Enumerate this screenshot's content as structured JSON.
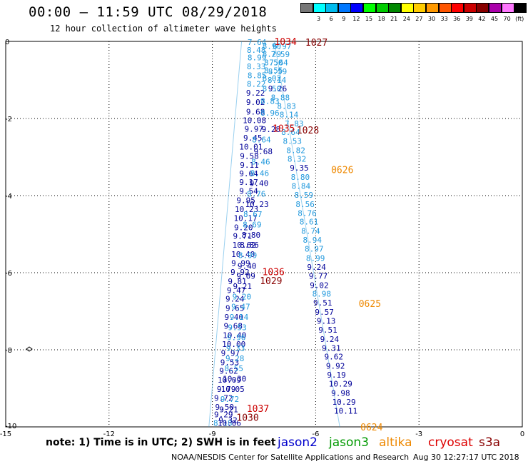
{
  "title": "00:00 – 11:59 UTC 08/29/2018",
  "subtitle": "12 hour collection of altimeter wave heights",
  "note": "note: 1) Time is in UTC; 2) SWH is in feet",
  "satellites": [
    {
      "name": "jason2",
      "color": "#0000cc"
    },
    {
      "name": "jason3",
      "color": "#009900"
    },
    {
      "name": "altika",
      "color": "#ee8800"
    },
    {
      "name": "cryosat",
      "color": "#dd0000"
    },
    {
      "name": "s3a",
      "color": "#880000"
    }
  ],
  "credit": "NOAA/NESDIS Center for Satellite Applications and Research",
  "timestamp": "Aug 30 12:27:17 UTC 2018",
  "color_scale": {
    "unit_label": "(ft)",
    "colors": [
      "#777777",
      "#00ffff",
      "#00bbee",
      "#0077ff",
      "#0000ff",
      "#00ff00",
      "#00cc00",
      "#008800",
      "#ffff00",
      "#ffcc00",
      "#ff9900",
      "#ff5500",
      "#ff0000",
      "#cc0000",
      "#880000",
      "#aa00aa",
      "#ff77ff",
      "#000000"
    ],
    "labels": [
      "3",
      "6",
      "9",
      "12",
      "15",
      "18",
      "21",
      "24",
      "27",
      "30",
      "33",
      "36",
      "39",
      "42",
      "45",
      "70"
    ]
  },
  "chart_data": {
    "type": "scatter",
    "xlim": [
      -15,
      0
    ],
    "ylim": [
      -10,
      0
    ],
    "x_ticks": [
      -15,
      -12,
      -9,
      -6,
      -3,
      0
    ],
    "y_ticks": [
      0,
      -2,
      -4,
      -6,
      -8,
      -10
    ],
    "grid": true,
    "track_mark_color": "#2299dd",
    "wave_heights_ft": [
      {
        "x": -7.98,
        "y": -0.02,
        "v": "7.64",
        "color": "#2299dd"
      },
      {
        "x": -8.0,
        "y": -0.22,
        "v": "8.48",
        "color": "#2299dd"
      },
      {
        "x": -7.98,
        "y": -0.42,
        "v": "8.99",
        "color": "#2299dd"
      },
      {
        "x": -8.0,
        "y": -0.65,
        "v": "8.33",
        "color": "#2299dd"
      },
      {
        "x": -7.98,
        "y": -0.88,
        "v": "8.85",
        "color": "#2299dd"
      },
      {
        "x": -8.0,
        "y": -1.1,
        "v": "8.22",
        "color": "#2299dd"
      },
      {
        "x": -8.02,
        "y": -1.33,
        "v": "9.22",
        "color": "#000099"
      },
      {
        "x": -8.02,
        "y": -1.57,
        "v": "9.02",
        "color": "#000099"
      },
      {
        "x": -8.02,
        "y": -1.82,
        "v": "9.68",
        "color": "#000099"
      },
      {
        "x": -8.12,
        "y": -2.05,
        "v": "10.08",
        "color": "#000099"
      },
      {
        "x": -8.07,
        "y": -2.27,
        "v": "9.97",
        "color": "#000099"
      },
      {
        "x": -8.1,
        "y": -2.5,
        "v": "9.45",
        "color": "#000099"
      },
      {
        "x": -8.22,
        "y": -2.73,
        "v": "10.01",
        "color": "#000099"
      },
      {
        "x": -8.2,
        "y": -2.97,
        "v": "9.58",
        "color": "#000099"
      },
      {
        "x": -8.2,
        "y": -3.2,
        "v": "9.11",
        "color": "#000099"
      },
      {
        "x": -8.22,
        "y": -3.43,
        "v": "9.64",
        "color": "#000099"
      },
      {
        "x": -8.22,
        "y": -3.65,
        "v": "9.17",
        "color": "#000099"
      },
      {
        "x": -8.22,
        "y": -3.88,
        "v": "9.54",
        "color": "#000099"
      },
      {
        "x": -8.3,
        "y": -4.12,
        "v": "9.95",
        "color": "#000099"
      },
      {
        "x": -8.35,
        "y": -4.35,
        "v": "10.23",
        "color": "#000099"
      },
      {
        "x": -8.38,
        "y": -4.58,
        "v": "10.17",
        "color": "#000099"
      },
      {
        "x": -8.37,
        "y": -4.82,
        "v": "9.20",
        "color": "#000099"
      },
      {
        "x": -8.4,
        "y": -5.05,
        "v": "9.71",
        "color": "#000099"
      },
      {
        "x": -8.42,
        "y": -5.28,
        "v": "10.62",
        "color": "#000099"
      },
      {
        "x": -8.45,
        "y": -5.52,
        "v": "10.40",
        "color": "#000099"
      },
      {
        "x": -8.45,
        "y": -5.75,
        "v": "9.99",
        "color": "#000099"
      },
      {
        "x": -8.47,
        "y": -5.98,
        "v": "9.92",
        "color": "#000099"
      },
      {
        "x": -8.55,
        "y": -6.22,
        "v": "9.81",
        "color": "#000099"
      },
      {
        "x": -8.58,
        "y": -6.45,
        "v": "9.47",
        "color": "#000099"
      },
      {
        "x": -8.62,
        "y": -6.68,
        "v": "9.24",
        "color": "#000099"
      },
      {
        "x": -8.62,
        "y": -6.92,
        "v": "9.65",
        "color": "#000099"
      },
      {
        "x": -8.65,
        "y": -7.15,
        "v": "9.40",
        "color": "#000099"
      },
      {
        "x": -8.67,
        "y": -7.38,
        "v": "9.68",
        "color": "#000099"
      },
      {
        "x": -8.7,
        "y": -7.62,
        "v": "10.40",
        "color": "#000099"
      },
      {
        "x": -8.72,
        "y": -7.85,
        "v": "10.00",
        "color": "#000099"
      },
      {
        "x": -8.75,
        "y": -8.08,
        "v": "9.97",
        "color": "#000099"
      },
      {
        "x": -8.77,
        "y": -8.32,
        "v": "9.53",
        "color": "#000099"
      },
      {
        "x": -8.8,
        "y": -8.55,
        "v": "9.62",
        "color": "#000099"
      },
      {
        "x": -8.85,
        "y": -8.78,
        "v": "10.09",
        "color": "#000099"
      },
      {
        "x": -8.87,
        "y": -9.02,
        "v": "9.79",
        "color": "#000099"
      },
      {
        "x": -8.95,
        "y": -9.25,
        "v": "9.72",
        "color": "#000099"
      },
      {
        "x": -8.92,
        "y": -9.48,
        "v": "9.50",
        "color": "#000099"
      },
      {
        "x": -8.95,
        "y": -9.68,
        "v": "9.29",
        "color": "#000099"
      },
      {
        "x": -8.97,
        "y": -9.9,
        "v": "8.18",
        "color": "#2299dd"
      },
      {
        "x": -7.25,
        "y": -0.12,
        "v": "6.97",
        "color": "#2299dd"
      },
      {
        "x": -7.3,
        "y": -0.33,
        "v": "7.59",
        "color": "#2299dd"
      },
      {
        "x": -7.35,
        "y": -0.55,
        "v": "7.64",
        "color": "#2299dd"
      },
      {
        "x": -7.38,
        "y": -0.78,
        "v": "8.59",
        "color": "#2299dd"
      },
      {
        "x": -7.4,
        "y": -1.0,
        "v": "8.14",
        "color": "#2299dd"
      },
      {
        "x": -7.38,
        "y": -1.22,
        "v": "9.26",
        "color": "#000099"
      },
      {
        "x": -7.3,
        "y": -1.45,
        "v": "8.88",
        "color": "#2299dd"
      },
      {
        "x": -7.12,
        "y": -1.68,
        "v": "8.83",
        "color": "#2299dd"
      },
      {
        "x": -7.05,
        "y": -1.9,
        "v": "8.14",
        "color": "#2299dd"
      },
      {
        "x": -6.9,
        "y": -2.13,
        "v": "7.83",
        "color": "#2299dd"
      },
      {
        "x": -7.0,
        "y": -2.35,
        "v": "8.64",
        "color": "#2299dd"
      },
      {
        "x": -6.95,
        "y": -2.58,
        "v": "8.53",
        "color": "#2299dd"
      },
      {
        "x": -6.85,
        "y": -2.82,
        "v": "8.82",
        "color": "#2299dd"
      },
      {
        "x": -6.82,
        "y": -3.05,
        "v": "8.32",
        "color": "#2299dd"
      },
      {
        "x": -6.75,
        "y": -3.28,
        "v": "9.35",
        "color": "#000099"
      },
      {
        "x": -6.72,
        "y": -3.52,
        "v": "8.80",
        "color": "#2299dd"
      },
      {
        "x": -6.7,
        "y": -3.75,
        "v": "8.84",
        "color": "#2299dd"
      },
      {
        "x": -6.62,
        "y": -3.98,
        "v": "8.59",
        "color": "#2299dd"
      },
      {
        "x": -6.58,
        "y": -4.22,
        "v": "8.56",
        "color": "#2299dd"
      },
      {
        "x": -6.52,
        "y": -4.45,
        "v": "8.76",
        "color": "#2299dd"
      },
      {
        "x": -6.47,
        "y": -4.68,
        "v": "8.61",
        "color": "#2299dd"
      },
      {
        "x": -6.42,
        "y": -4.92,
        "v": "8.74",
        "color": "#2299dd"
      },
      {
        "x": -6.37,
        "y": -5.15,
        "v": "8.94",
        "color": "#2299dd"
      },
      {
        "x": -6.32,
        "y": -5.38,
        "v": "8.97",
        "color": "#2299dd"
      },
      {
        "x": -6.28,
        "y": -5.62,
        "v": "8.99",
        "color": "#2299dd"
      },
      {
        "x": -6.25,
        "y": -5.85,
        "v": "9.24",
        "color": "#000099"
      },
      {
        "x": -6.2,
        "y": -6.08,
        "v": "9.77",
        "color": "#000099"
      },
      {
        "x": -6.17,
        "y": -6.32,
        "v": "9.02",
        "color": "#000099"
      },
      {
        "x": -6.1,
        "y": -6.55,
        "v": "8.98",
        "color": "#2299dd"
      },
      {
        "x": -6.07,
        "y": -6.78,
        "v": "9.51",
        "color": "#000099"
      },
      {
        "x": -6.02,
        "y": -7.02,
        "v": "9.57",
        "color": "#000099"
      },
      {
        "x": -5.97,
        "y": -7.25,
        "v": "9.13",
        "color": "#000099"
      },
      {
        "x": -5.92,
        "y": -7.48,
        "v": "9.51",
        "color": "#000099"
      },
      {
        "x": -5.87,
        "y": -7.72,
        "v": "9.24",
        "color": "#000099"
      },
      {
        "x": -5.82,
        "y": -7.95,
        "v": "9.31",
        "color": "#000099"
      },
      {
        "x": -5.75,
        "y": -8.18,
        "v": "9.62",
        "color": "#000099"
      },
      {
        "x": -5.7,
        "y": -8.42,
        "v": "9.92",
        "color": "#000099"
      },
      {
        "x": -5.67,
        "y": -8.65,
        "v": "9.19",
        "color": "#000099"
      },
      {
        "x": -5.62,
        "y": -8.88,
        "v": "10.29",
        "color": "#000099"
      },
      {
        "x": -5.55,
        "y": -9.12,
        "v": "9.98",
        "color": "#000099"
      },
      {
        "x": -5.52,
        "y": -9.35,
        "v": "10.29",
        "color": "#000099"
      },
      {
        "x": -5.47,
        "y": -9.58,
        "v": "10.11",
        "color": "#000099"
      },
      {
        "x": -7.55,
        "y": -0.12,
        "v": "8.90",
        "color": "#2299dd"
      },
      {
        "x": -7.55,
        "y": -0.32,
        "v": "8.29",
        "color": "#2299dd"
      },
      {
        "x": -7.5,
        "y": -0.55,
        "v": "8.50",
        "color": "#2299dd"
      },
      {
        "x": -7.5,
        "y": -0.75,
        "v": "8.55",
        "color": "#2299dd"
      },
      {
        "x": -7.55,
        "y": -0.95,
        "v": "8.02",
        "color": "#2299dd"
      },
      {
        "x": -7.55,
        "y": -1.22,
        "v": "8.50",
        "color": "#2299dd"
      },
      {
        "x": -7.6,
        "y": -1.55,
        "v": "8.83",
        "color": "#2299dd"
      },
      {
        "x": -7.6,
        "y": -1.85,
        "v": "8.96",
        "color": "#2299dd"
      },
      {
        "x": -7.57,
        "y": -2.28,
        "v": "9.28",
        "color": "#000099"
      },
      {
        "x": -7.85,
        "y": -2.55,
        "v": "8.64",
        "color": "#2299dd"
      },
      {
        "x": -7.8,
        "y": -2.85,
        "v": "9.68",
        "color": "#000099"
      },
      {
        "x": -7.87,
        "y": -3.12,
        "v": "8.46",
        "color": "#2299dd"
      },
      {
        "x": -7.9,
        "y": -3.42,
        "v": "8.46",
        "color": "#2299dd"
      },
      {
        "x": -7.92,
        "y": -3.68,
        "v": "9.40",
        "color": "#000099"
      },
      {
        "x": -8.0,
        "y": -3.95,
        "v": "8.76",
        "color": "#2299dd"
      },
      {
        "x": -8.05,
        "y": -4.22,
        "v": "10.23",
        "color": "#000099"
      },
      {
        "x": -8.1,
        "y": -4.48,
        "v": "8.67",
        "color": "#2299dd"
      },
      {
        "x": -8.12,
        "y": -4.75,
        "v": "8.69",
        "color": "#2299dd"
      },
      {
        "x": -8.15,
        "y": -5.02,
        "v": "8.80",
        "color": "#000099"
      },
      {
        "x": -8.2,
        "y": -5.28,
        "v": "8.86",
        "color": "#000099"
      },
      {
        "x": -8.25,
        "y": -5.55,
        "v": "8.99",
        "color": "#2299dd"
      },
      {
        "x": -8.27,
        "y": -5.82,
        "v": "9.40",
        "color": "#000099"
      },
      {
        "x": -8.3,
        "y": -6.08,
        "v": "9.09",
        "color": "#000099"
      },
      {
        "x": -8.4,
        "y": -6.35,
        "v": "9.21",
        "color": "#000099"
      },
      {
        "x": -8.42,
        "y": -6.62,
        "v": "9.20",
        "color": "#2299dd"
      },
      {
        "x": -8.45,
        "y": -6.88,
        "v": "9.47",
        "color": "#2299dd"
      },
      {
        "x": -8.5,
        "y": -7.15,
        "v": "9.14",
        "color": "#2299dd"
      },
      {
        "x": -8.55,
        "y": -7.42,
        "v": "9.53",
        "color": "#2299dd"
      },
      {
        "x": -8.58,
        "y": -7.68,
        "v": "9.96",
        "color": "#2299dd"
      },
      {
        "x": -8.6,
        "y": -7.95,
        "v": "9.33",
        "color": "#2299dd"
      },
      {
        "x": -8.62,
        "y": -8.22,
        "v": "9.28",
        "color": "#2299dd"
      },
      {
        "x": -8.65,
        "y": -8.48,
        "v": "8.55",
        "color": "#2299dd"
      },
      {
        "x": -8.7,
        "y": -8.75,
        "v": "10.30",
        "color": "#000099"
      },
      {
        "x": -8.75,
        "y": -9.02,
        "v": "10.05",
        "color": "#000099"
      },
      {
        "x": -8.77,
        "y": -9.28,
        "v": "9.72",
        "color": "#2299dd"
      },
      {
        "x": -8.8,
        "y": -9.55,
        "v": "9.21",
        "color": "#000099"
      },
      {
        "x": -8.82,
        "y": -9.82,
        "v": "9.32",
        "color": "#000099"
      },
      {
        "x": -8.85,
        "y": -9.9,
        "v": "10.06",
        "color": "#000099"
      }
    ],
    "pressure_labels": [
      {
        "x": -7.2,
        "y": 0.0,
        "v": "1034",
        "color": "#cc0000"
      },
      {
        "x": -6.3,
        "y": -0.02,
        "v": "1027",
        "color": "#880000"
      },
      {
        "x": -7.25,
        "y": -2.25,
        "v": "1035",
        "color": "#cc0000"
      },
      {
        "x": -6.55,
        "y": -2.3,
        "v": "1028",
        "color": "#880000"
      },
      {
        "x": -7.55,
        "y": -5.97,
        "v": "1036",
        "color": "#cc0000"
      },
      {
        "x": -7.62,
        "y": -6.2,
        "v": "1029",
        "color": "#880000"
      },
      {
        "x": -8.0,
        "y": -9.52,
        "v": "1037",
        "color": "#cc0000"
      },
      {
        "x": -8.3,
        "y": -9.75,
        "v": "1030",
        "color": "#880000"
      }
    ],
    "time_labels": [
      {
        "x": -5.55,
        "y": -3.32,
        "v": "0626",
        "color": "#ee8800"
      },
      {
        "x": -4.75,
        "y": -6.8,
        "v": "0625",
        "color": "#ee8800"
      },
      {
        "x": -4.7,
        "y": -10.0,
        "v": "0624",
        "color": "#ee8800"
      }
    ]
  }
}
